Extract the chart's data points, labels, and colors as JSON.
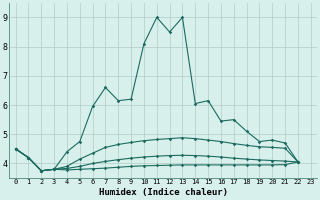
{
  "xlabel": "Humidex (Indice chaleur)",
  "bg_color": "#d8f0ec",
  "line_color": "#1a6b5e",
  "grid_color": "#b0ccc8",
  "xlim": [
    -0.5,
    23.5
  ],
  "ylim": [
    3.5,
    9.5
  ],
  "xticks": [
    0,
    1,
    2,
    3,
    4,
    5,
    6,
    7,
    8,
    9,
    10,
    11,
    12,
    13,
    14,
    15,
    16,
    17,
    18,
    19,
    20,
    21,
    22,
    23
  ],
  "yticks": [
    4,
    5,
    6,
    7,
    8,
    9
  ],
  "series": [
    [
      4.5,
      4.2,
      3.75,
      3.8,
      4.4,
      4.75,
      5.95,
      6.6,
      6.15,
      6.2,
      8.1,
      9.0,
      8.5,
      9.0,
      6.05,
      6.15,
      5.45,
      5.5,
      5.1,
      4.75,
      4.8,
      4.7,
      4.05
    ],
    [
      4.5,
      4.2,
      3.75,
      3.8,
      3.9,
      4.15,
      4.35,
      4.55,
      4.65,
      4.72,
      4.78,
      4.82,
      4.85,
      4.88,
      4.85,
      4.8,
      4.75,
      4.68,
      4.62,
      4.57,
      4.55,
      4.52,
      4.05
    ],
    [
      4.5,
      4.2,
      3.75,
      3.8,
      3.83,
      3.9,
      4.0,
      4.07,
      4.13,
      4.18,
      4.22,
      4.25,
      4.27,
      4.28,
      4.27,
      4.25,
      4.22,
      4.18,
      4.15,
      4.12,
      4.1,
      4.08,
      4.05
    ],
    [
      4.5,
      4.2,
      3.75,
      3.8,
      3.78,
      3.8,
      3.82,
      3.84,
      3.87,
      3.9,
      3.92,
      3.93,
      3.94,
      3.95,
      3.95,
      3.95,
      3.95,
      3.95,
      3.95,
      3.95,
      3.95,
      3.96,
      4.05
    ]
  ]
}
